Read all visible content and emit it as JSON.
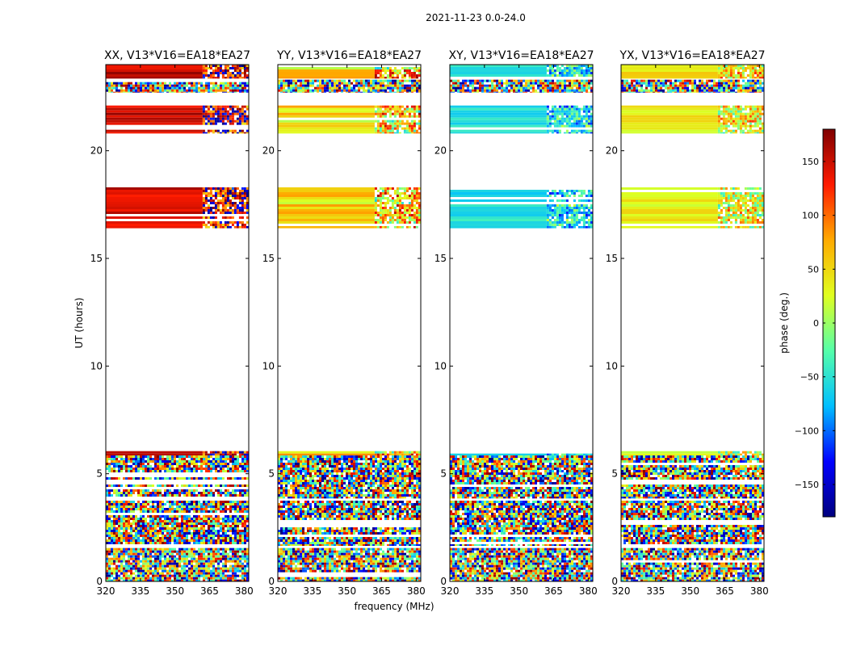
{
  "figure": {
    "suptitle": "2021-11-23 0.0-24.0",
    "xlabel": "frequency (MHz)",
    "ylabel": "UT (hours)",
    "colorbar_label": "phase (deg.)"
  },
  "chart_data": {
    "type": "heatmap",
    "title": "2021-11-23 0.0-24.0",
    "xlabel": "frequency (MHz)",
    "ylabel": "UT (hours)",
    "xlim": [
      320,
      382
    ],
    "ylim": [
      0,
      24
    ],
    "x_ticks": [
      320,
      335,
      350,
      365,
      380
    ],
    "y_ticks": [
      0,
      5,
      10,
      15,
      20
    ],
    "colorbar": {
      "label": "phase (deg.)",
      "range": [
        -180,
        180
      ],
      "ticks": [
        150,
        100,
        50,
        0,
        -50,
        -100,
        -150
      ],
      "tick_labels": [
        "150",
        "100",
        "50",
        "0",
        "−50",
        "−100",
        "−150"
      ],
      "colormap": [
        "#00007f",
        "#0000ff",
        "#00bfff",
        "#55ffaa",
        "#e0ff1f",
        "#ffaa00",
        "#ff1a00",
        "#7f0000"
      ]
    },
    "panels": [
      {
        "title": "XX, V13*V16=EA18*EA27",
        "coherent_phase_low": 130,
        "coherent_phase_high": 170,
        "high_band_jitter": 90
      },
      {
        "title": "YY, V13*V16=EA18*EA27",
        "coherent_phase_low": 10,
        "coherent_phase_high": 85,
        "high_band_jitter": 90
      },
      {
        "title": "XY, V13*V16=EA18*EA27",
        "coherent_phase_low": -70,
        "coherent_phase_high": -35,
        "high_band_jitter": 60
      },
      {
        "title": "YX, V13*V16=EA18*EA27",
        "coherent_phase_low": 15,
        "coherent_phase_high": 60,
        "high_band_jitter": 70
      }
    ],
    "data_bands_ut": [
      {
        "start": 0.0,
        "end": 1.55,
        "kind": "noise"
      },
      {
        "start": 1.65,
        "end": 3.75,
        "kind": "noise"
      },
      {
        "start": 3.85,
        "end": 5.85,
        "kind": "noise"
      },
      {
        "start": 5.85,
        "end": 6.05,
        "kind": "coherent"
      },
      {
        "start": 16.4,
        "end": 18.3,
        "kind": "coherent"
      },
      {
        "start": 20.8,
        "end": 22.1,
        "kind": "coherent"
      },
      {
        "start": 22.7,
        "end": 23.3,
        "kind": "noise"
      },
      {
        "start": 23.35,
        "end": 24.0,
        "kind": "coherent"
      }
    ],
    "coherent_break_mhz": 362
  }
}
